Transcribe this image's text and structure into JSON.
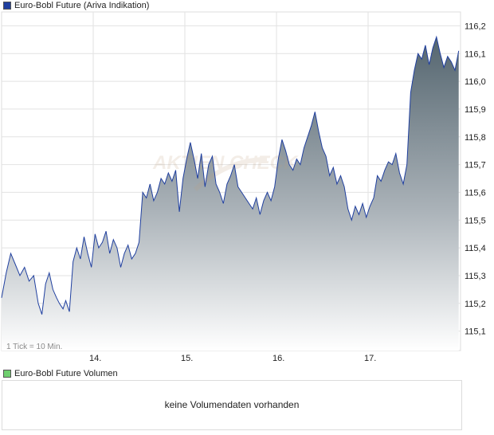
{
  "price_legend": {
    "label": "Euro-Bobl Future (Ariva Indikation)",
    "color": "#1f3f9f"
  },
  "volume_legend": {
    "label": "Euro-Bobl Future Volumen",
    "color": "#6fcf6f"
  },
  "volume_panel": {
    "message": "keine Volumendaten vorhanden"
  },
  "tick_note": "1 Tick = 10 Min.",
  "chart_data": {
    "type": "area",
    "title": "Euro-Bobl Future (Ariva Indikation)",
    "x_tick_labels": [
      "14.",
      "15.",
      "16.",
      "17."
    ],
    "y_tick_labels": [
      "116,2",
      "116,1",
      "116,0",
      "115,9",
      "115,8",
      "115,7",
      "115,6",
      "115,5",
      "115,4",
      "115,3",
      "115,2",
      "115,1"
    ],
    "y_ticks": [
      116.2,
      116.1,
      116.0,
      115.9,
      115.8,
      115.7,
      115.6,
      115.5,
      115.4,
      115.3,
      115.2,
      115.1
    ],
    "ylim": [
      115.03,
      116.25
    ],
    "grid": true,
    "line_color": "#1f3f9f",
    "x_unit": "trading days (0 = start of 13.)",
    "series": [
      {
        "name": "Euro-Bobl Future",
        "points": [
          [
            0.0,
            115.22
          ],
          [
            0.05,
            115.31
          ],
          [
            0.1,
            115.38
          ],
          [
            0.15,
            115.34
          ],
          [
            0.2,
            115.3
          ],
          [
            0.25,
            115.33
          ],
          [
            0.3,
            115.28
          ],
          [
            0.35,
            115.3
          ],
          [
            0.4,
            115.2
          ],
          [
            0.44,
            115.16
          ],
          [
            0.48,
            115.27
          ],
          [
            0.52,
            115.31
          ],
          [
            0.56,
            115.25
          ],
          [
            0.6,
            115.22
          ],
          [
            0.63,
            115.2
          ],
          [
            0.67,
            115.18
          ],
          [
            0.7,
            115.21
          ],
          [
            0.74,
            115.17
          ],
          [
            0.78,
            115.35
          ],
          [
            0.82,
            115.4
          ],
          [
            0.86,
            115.36
          ],
          [
            0.9,
            115.44
          ],
          [
            0.94,
            115.38
          ],
          [
            0.98,
            115.33
          ],
          [
            1.02,
            115.45
          ],
          [
            1.06,
            115.4
          ],
          [
            1.1,
            115.42
          ],
          [
            1.14,
            115.46
          ],
          [
            1.18,
            115.38
          ],
          [
            1.22,
            115.43
          ],
          [
            1.26,
            115.4
          ],
          [
            1.3,
            115.33
          ],
          [
            1.34,
            115.38
          ],
          [
            1.38,
            115.41
          ],
          [
            1.42,
            115.36
          ],
          [
            1.46,
            115.38
          ],
          [
            1.5,
            115.42
          ],
          [
            1.54,
            115.6
          ],
          [
            1.58,
            115.58
          ],
          [
            1.62,
            115.63
          ],
          [
            1.66,
            115.57
          ],
          [
            1.7,
            115.6
          ],
          [
            1.74,
            115.65
          ],
          [
            1.78,
            115.63
          ],
          [
            1.82,
            115.67
          ],
          [
            1.86,
            115.64
          ],
          [
            1.9,
            115.68
          ],
          [
            1.94,
            115.53
          ],
          [
            1.98,
            115.65
          ],
          [
            2.02,
            115.72
          ],
          [
            2.06,
            115.78
          ],
          [
            2.1,
            115.72
          ],
          [
            2.14,
            115.65
          ],
          [
            2.18,
            115.74
          ],
          [
            2.22,
            115.62
          ],
          [
            2.26,
            115.7
          ],
          [
            2.3,
            115.73
          ],
          [
            2.34,
            115.63
          ],
          [
            2.38,
            115.6
          ],
          [
            2.42,
            115.56
          ],
          [
            2.46,
            115.63
          ],
          [
            2.5,
            115.66
          ],
          [
            2.54,
            115.7
          ],
          [
            2.58,
            115.62
          ],
          [
            2.62,
            115.6
          ],
          [
            2.66,
            115.58
          ],
          [
            2.7,
            115.56
          ],
          [
            2.74,
            115.54
          ],
          [
            2.78,
            115.58
          ],
          [
            2.82,
            115.52
          ],
          [
            2.86,
            115.57
          ],
          [
            2.9,
            115.6
          ],
          [
            2.94,
            115.57
          ],
          [
            2.98,
            115.62
          ],
          [
            3.02,
            115.72
          ],
          [
            3.06,
            115.79
          ],
          [
            3.1,
            115.75
          ],
          [
            3.14,
            115.7
          ],
          [
            3.18,
            115.68
          ],
          [
            3.22,
            115.72
          ],
          [
            3.26,
            115.7
          ],
          [
            3.3,
            115.76
          ],
          [
            3.34,
            115.8
          ],
          [
            3.38,
            115.84
          ],
          [
            3.42,
            115.89
          ],
          [
            3.46,
            115.82
          ],
          [
            3.5,
            115.76
          ],
          [
            3.54,
            115.73
          ],
          [
            3.58,
            115.66
          ],
          [
            3.62,
            115.69
          ],
          [
            3.66,
            115.63
          ],
          [
            3.7,
            115.66
          ],
          [
            3.74,
            115.62
          ],
          [
            3.78,
            115.54
          ],
          [
            3.82,
            115.5
          ],
          [
            3.86,
            115.55
          ],
          [
            3.9,
            115.52
          ],
          [
            3.94,
            115.56
          ],
          [
            3.98,
            115.51
          ],
          [
            4.02,
            115.55
          ],
          [
            4.06,
            115.58
          ],
          [
            4.1,
            115.66
          ],
          [
            4.14,
            115.64
          ],
          [
            4.18,
            115.68
          ],
          [
            4.22,
            115.71
          ],
          [
            4.26,
            115.7
          ],
          [
            4.3,
            115.74
          ],
          [
            4.34,
            115.67
          ],
          [
            4.38,
            115.63
          ],
          [
            4.42,
            115.7
          ],
          [
            4.46,
            115.96
          ],
          [
            4.5,
            116.04
          ],
          [
            4.54,
            116.1
          ],
          [
            4.58,
            116.08
          ],
          [
            4.62,
            116.13
          ],
          [
            4.66,
            116.06
          ],
          [
            4.7,
            116.12
          ],
          [
            4.74,
            116.16
          ],
          [
            4.78,
            116.1
          ],
          [
            4.82,
            116.05
          ],
          [
            4.86,
            116.09
          ],
          [
            4.9,
            116.07
          ],
          [
            4.94,
            116.04
          ],
          [
            4.98,
            116.11
          ]
        ]
      }
    ],
    "volume_data": []
  }
}
